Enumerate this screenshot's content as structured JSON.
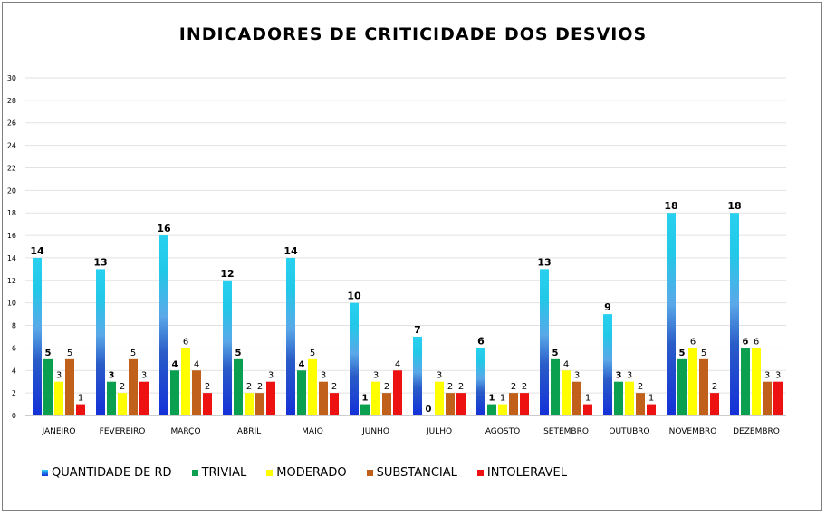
{
  "chart_data": {
    "type": "bar",
    "title": "INDICADORES DE CRITICIDADE DOS DESVIOS",
    "categories": [
      "JANEIRO",
      "FEVEREIRO",
      "MARÇO",
      "ABRIL",
      "MAIO",
      "JUNHO",
      "JULHO",
      "AGOSTO",
      "SETEMBRO",
      "OUTUBRO",
      "NOVEMBRO",
      "DEZEMBRO"
    ],
    "ylim": [
      0,
      30
    ],
    "yticks": [
      0,
      2,
      4,
      6,
      8,
      10,
      12,
      14,
      16,
      18,
      20,
      22,
      24,
      26,
      28,
      30
    ],
    "grid": true,
    "legend_position": "bottom-left",
    "series": [
      {
        "name": "QUANTIDADE DE RD",
        "color": "#1fa0e0",
        "values": [
          14,
          13,
          16,
          12,
          14,
          10,
          7,
          6,
          13,
          9,
          18,
          18
        ]
      },
      {
        "name": "TRIVIAL",
        "color": "#0aa050",
        "values": [
          5,
          3,
          4,
          5,
          4,
          1,
          0,
          1,
          5,
          3,
          5,
          6
        ]
      },
      {
        "name": "MODERADO",
        "color": "#ffff00",
        "values": [
          3,
          2,
          6,
          2,
          5,
          3,
          3,
          1,
          4,
          3,
          6,
          6
        ]
      },
      {
        "name": "SUBSTANCIAL",
        "color": "#c0601a",
        "values": [
          5,
          5,
          4,
          2,
          3,
          2,
          2,
          2,
          3,
          2,
          5,
          3
        ]
      },
      {
        "name": "INTOLERAVEL",
        "color": "#ee1111",
        "values": [
          1,
          3,
          2,
          3,
          2,
          4,
          2,
          2,
          1,
          1,
          2,
          3
        ]
      }
    ]
  }
}
